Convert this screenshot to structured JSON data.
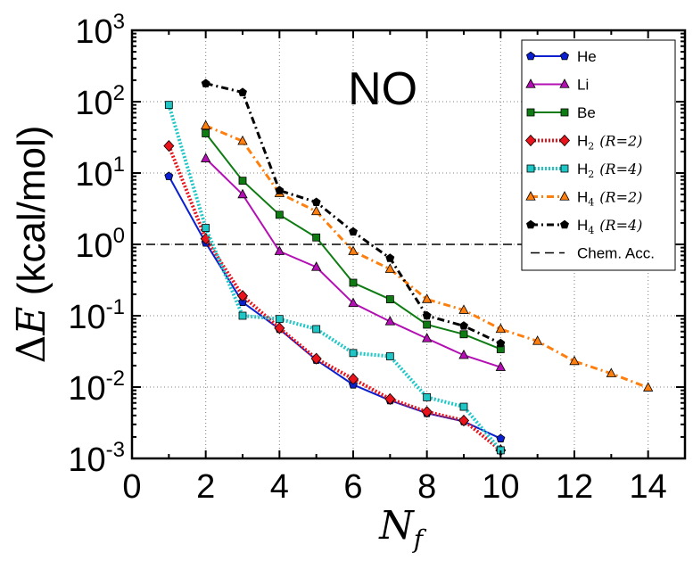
{
  "chart_data": {
    "type": "line",
    "annotation": "NO",
    "xlabel_main": "N",
    "xlabel_sub": "f",
    "ylabel_delta": "Δ",
    "ylabel_var": "E",
    "ylabel_units": " (kcal/mol)",
    "xlim": [
      0,
      15
    ],
    "ylim": [
      0.001,
      1000
    ],
    "yscale": "log",
    "grid": true,
    "legend_position": "top-right",
    "x_ticks": [
      "0",
      "2",
      "4",
      "6",
      "8",
      "10",
      "12",
      "14"
    ],
    "y_ticks": [
      {
        "base": "10",
        "exp": "-3"
      },
      {
        "base": "10",
        "exp": "-2"
      },
      {
        "base": "10",
        "exp": "-1"
      },
      {
        "base": "10",
        "exp": "0"
      },
      {
        "base": "10",
        "exp": "1"
      },
      {
        "base": "10",
        "exp": "2"
      },
      {
        "base": "10",
        "exp": "3"
      }
    ],
    "series": [
      {
        "name": "He",
        "color": "#0a1fd0",
        "marker": "pentagon",
        "dash": "solid",
        "x": [
          1,
          2,
          3,
          4,
          5,
          6,
          7,
          8,
          9,
          10
        ],
        "y": [
          9.0,
          1.05,
          0.155,
          0.065,
          0.024,
          0.0108,
          0.0065,
          0.0043,
          0.0033,
          0.0019
        ]
      },
      {
        "name": "Li",
        "color": "#b30fb3",
        "marker": "triangle",
        "dash": "solid",
        "x": [
          2,
          3,
          4,
          5,
          6,
          7,
          8,
          9,
          10
        ],
        "y": [
          16,
          5.0,
          0.8,
          0.48,
          0.15,
          0.083,
          0.048,
          0.028,
          0.019
        ]
      },
      {
        "name": "Be",
        "color": "#0e7c12",
        "marker": "square",
        "dash": "solid",
        "x": [
          2,
          3,
          4,
          5,
          6,
          7,
          8,
          9,
          10
        ],
        "y": [
          36,
          7.8,
          2.6,
          1.25,
          0.29,
          0.17,
          0.075,
          0.055,
          0.034
        ]
      },
      {
        "name_main": "H",
        "name_sub": "2",
        "name_param": "(R=2)",
        "color": "#e8131b",
        "marker": "diamond",
        "dash": "dotted",
        "x": [
          1,
          2,
          3,
          4,
          5,
          6,
          7,
          8,
          9,
          10
        ],
        "y": [
          24,
          1.2,
          0.19,
          0.067,
          0.025,
          0.013,
          0.0068,
          0.0045,
          0.0034,
          0.0013
        ]
      },
      {
        "name_main": "H",
        "name_sub": "2",
        "name_param": "(R=4)",
        "color": "#1ec6c6",
        "marker": "square",
        "dash": "dotted",
        "x": [
          1,
          2,
          3,
          4,
          5,
          6,
          7,
          8,
          9,
          10
        ],
        "y": [
          90,
          1.7,
          0.1,
          0.09,
          0.065,
          0.03,
          0.027,
          0.0072,
          0.0053,
          0.0013
        ]
      },
      {
        "name_main": "H",
        "name_sub": "4",
        "name_param": "(R=2)",
        "color": "#ff7f0e",
        "marker": "triangle",
        "dash": "dashdot",
        "x": [
          2,
          3,
          4,
          5,
          6,
          7,
          8,
          9,
          10,
          11,
          12,
          13,
          14
        ],
        "y": [
          46,
          28,
          5.2,
          2.9,
          0.8,
          0.45,
          0.17,
          0.12,
          0.065,
          0.044,
          0.023,
          0.0155,
          0.0098
        ]
      },
      {
        "name_main": "H",
        "name_sub": "4",
        "name_param": "(R=4)",
        "color": "#000000",
        "marker": "pentagon",
        "dash": "dashdot",
        "x": [
          2,
          3,
          4,
          5,
          6,
          7,
          8,
          9,
          10
        ],
        "y": [
          180,
          135,
          5.7,
          3.9,
          1.5,
          0.64,
          0.1,
          0.072,
          0.041
        ]
      }
    ],
    "reference_line": {
      "name": "Chem. Acc.",
      "y": 1.0,
      "color": "#000000",
      "dash": "dashed"
    }
  }
}
